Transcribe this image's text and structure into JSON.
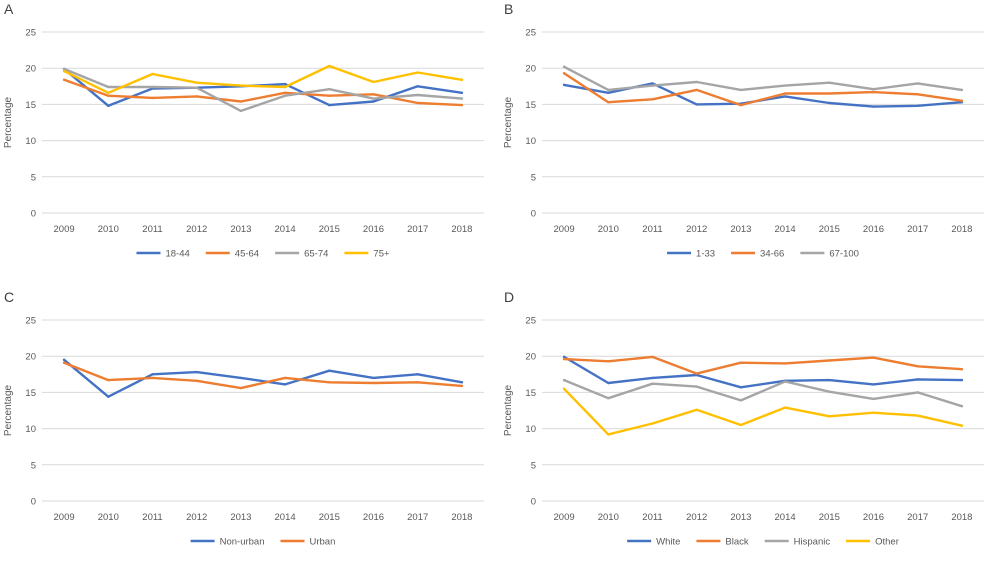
{
  "chart_data": [
    {
      "type": "line",
      "panel_label": "A",
      "ylabel": "Percentage",
      "xlabel": "",
      "ylim": [
        0,
        25
      ],
      "yticks": [
        0,
        5,
        10,
        15,
        20,
        25
      ],
      "grid": true,
      "legend_position": "bottom",
      "categories": [
        "2009",
        "2010",
        "2011",
        "2012",
        "2013",
        "2014",
        "2015",
        "2016",
        "2017",
        "2018"
      ],
      "series": [
        {
          "name": "18-44",
          "color": "#4472C4",
          "values": [
            19.9,
            14.8,
            17.2,
            17.3,
            17.5,
            17.8,
            14.9,
            15.4,
            17.5,
            16.6
          ]
        },
        {
          "name": "45-64",
          "color": "#ED7D31",
          "values": [
            18.4,
            16.2,
            15.9,
            16.1,
            15.4,
            16.6,
            16.2,
            16.4,
            15.2,
            14.9
          ]
        },
        {
          "name": "65-74",
          "color": "#A5A5A5",
          "values": [
            19.9,
            17.4,
            17.4,
            17.3,
            14.1,
            16.2,
            17.1,
            15.8,
            16.3,
            15.8
          ]
        },
        {
          "name": "75+",
          "color": "#FFC000",
          "values": [
            19.6,
            16.6,
            19.2,
            18.0,
            17.6,
            17.4,
            20.3,
            18.1,
            19.4,
            18.4
          ]
        }
      ]
    },
    {
      "type": "line",
      "panel_label": "B",
      "ylabel": "Percentage",
      "xlabel": "",
      "ylim": [
        0,
        25
      ],
      "yticks": [
        0,
        5,
        10,
        15,
        20,
        25
      ],
      "grid": true,
      "legend_position": "bottom",
      "categories": [
        "2009",
        "2010",
        "2011",
        "2012",
        "2013",
        "2014",
        "2015",
        "2016",
        "2017",
        "2018"
      ],
      "series": [
        {
          "name": "1-33",
          "color": "#4472C4",
          "values": [
            17.7,
            16.6,
            17.9,
            15.0,
            15.1,
            16.1,
            15.2,
            14.7,
            14.8,
            15.3
          ]
        },
        {
          "name": "34-66",
          "color": "#ED7D31",
          "values": [
            19.3,
            15.3,
            15.7,
            17.0,
            14.9,
            16.5,
            16.5,
            16.7,
            16.4,
            15.5
          ]
        },
        {
          "name": "67-100",
          "color": "#A5A5A5",
          "values": [
            20.2,
            17.0,
            17.6,
            18.1,
            17.0,
            17.6,
            18.0,
            17.1,
            17.9,
            17.0
          ]
        }
      ]
    },
    {
      "type": "line",
      "panel_label": "C",
      "ylabel": "Percentage",
      "xlabel": "",
      "ylim": [
        0,
        25
      ],
      "yticks": [
        0,
        5,
        10,
        15,
        20,
        25
      ],
      "grid": true,
      "legend_position": "bottom",
      "categories": [
        "2009",
        "2010",
        "2011",
        "2012",
        "2013",
        "2014",
        "2015",
        "2016",
        "2017",
        "2018"
      ],
      "series": [
        {
          "name": "Non-urban",
          "color": "#4472C4",
          "values": [
            19.5,
            14.4,
            17.5,
            17.8,
            17.0,
            16.1,
            18.0,
            17.0,
            17.5,
            16.4
          ]
        },
        {
          "name": "Urban",
          "color": "#ED7D31",
          "values": [
            19.1,
            16.7,
            17.0,
            16.6,
            15.6,
            17.0,
            16.4,
            16.3,
            16.4,
            15.9
          ]
        }
      ]
    },
    {
      "type": "line",
      "panel_label": "D",
      "ylabel": "Percentage",
      "xlabel": "",
      "ylim": [
        0,
        25
      ],
      "yticks": [
        0,
        5,
        10,
        15,
        20,
        25
      ],
      "grid": true,
      "legend_position": "bottom",
      "categories": [
        "2009",
        "2010",
        "2011",
        "2012",
        "2013",
        "2014",
        "2015",
        "2016",
        "2017",
        "2018"
      ],
      "series": [
        {
          "name": "White",
          "color": "#4472C4",
          "values": [
            19.9,
            16.3,
            17.0,
            17.4,
            15.7,
            16.6,
            16.7,
            16.1,
            16.8,
            16.7
          ]
        },
        {
          "name": "Black",
          "color": "#ED7D31",
          "values": [
            19.6,
            19.3,
            19.9,
            17.6,
            19.1,
            19.0,
            19.4,
            19.8,
            18.6,
            18.2
          ]
        },
        {
          "name": "Hispanic",
          "color": "#A5A5A5",
          "values": [
            16.7,
            14.2,
            16.2,
            15.8,
            13.9,
            16.5,
            15.1,
            14.1,
            15.0,
            13.1
          ]
        },
        {
          "name": "Other",
          "color": "#FFC000",
          "values": [
            15.5,
            9.2,
            10.7,
            12.6,
            10.5,
            12.9,
            11.7,
            12.2,
            11.8,
            10.4
          ]
        }
      ]
    }
  ]
}
